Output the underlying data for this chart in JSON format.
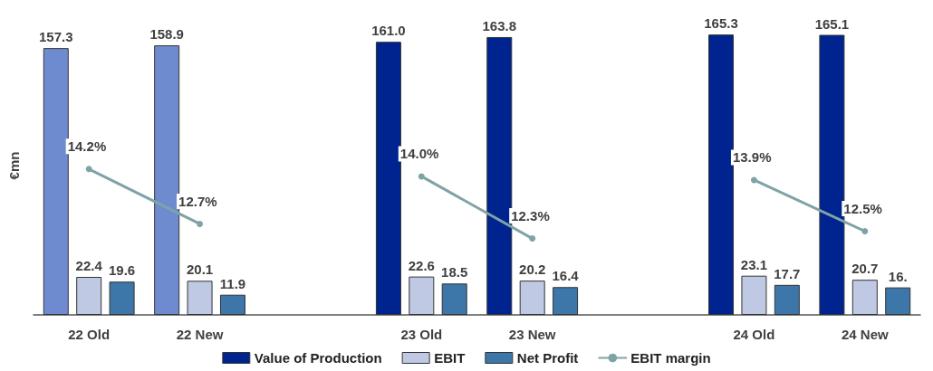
{
  "chart_data": {
    "type": "bar",
    "ylabel": "€mn",
    "categories": [
      "22 Old",
      "22 New",
      null,
      "23 Old",
      "23 New",
      null,
      "24 Old",
      "24 New"
    ],
    "series": [
      {
        "name": "Value of Production",
        "color": "#00248f",
        "colors": [
          "#6f8bcf",
          "#6f8bcf",
          null,
          "#00248f",
          "#00248f",
          null,
          "#00248f",
          "#00248f"
        ],
        "values": [
          157.3,
          158.9,
          null,
          161.0,
          163.8,
          null,
          165.3,
          165.1
        ],
        "value_labels": [
          "157.3",
          "158.9",
          null,
          "161.0",
          "163.8",
          null,
          "165.3",
          "165.1"
        ]
      },
      {
        "name": "EBIT",
        "color": "#c0c9e4",
        "values": [
          22.4,
          20.1,
          null,
          22.6,
          20.2,
          null,
          23.1,
          20.7
        ],
        "value_labels": [
          "22.4",
          "20.1",
          null,
          "22.6",
          "20.2",
          null,
          "23.1",
          "20.7"
        ]
      },
      {
        "name": "Net Profit",
        "color": "#3d76a8",
        "values": [
          19.6,
          11.9,
          null,
          18.5,
          16.4,
          null,
          17.7,
          16.2
        ],
        "value_labels": [
          "19.6",
          "11.9",
          null,
          "18.5",
          "16.4",
          null,
          "17.7",
          "16."
        ]
      },
      {
        "name": "EBIT margin",
        "type": "line",
        "axis": "y2",
        "color": "#7fa3a6",
        "marker": "circle",
        "values": [
          14.2,
          12.7,
          null,
          14.0,
          12.3,
          null,
          13.9,
          12.5
        ],
        "value_labels": [
          "14.2%",
          "12.7%",
          null,
          "14.0%",
          "12.3%",
          null,
          "13.9%",
          "12.5%"
        ]
      }
    ],
    "tick_labels": "x",
    "grid": false,
    "legend": "bottom"
  }
}
